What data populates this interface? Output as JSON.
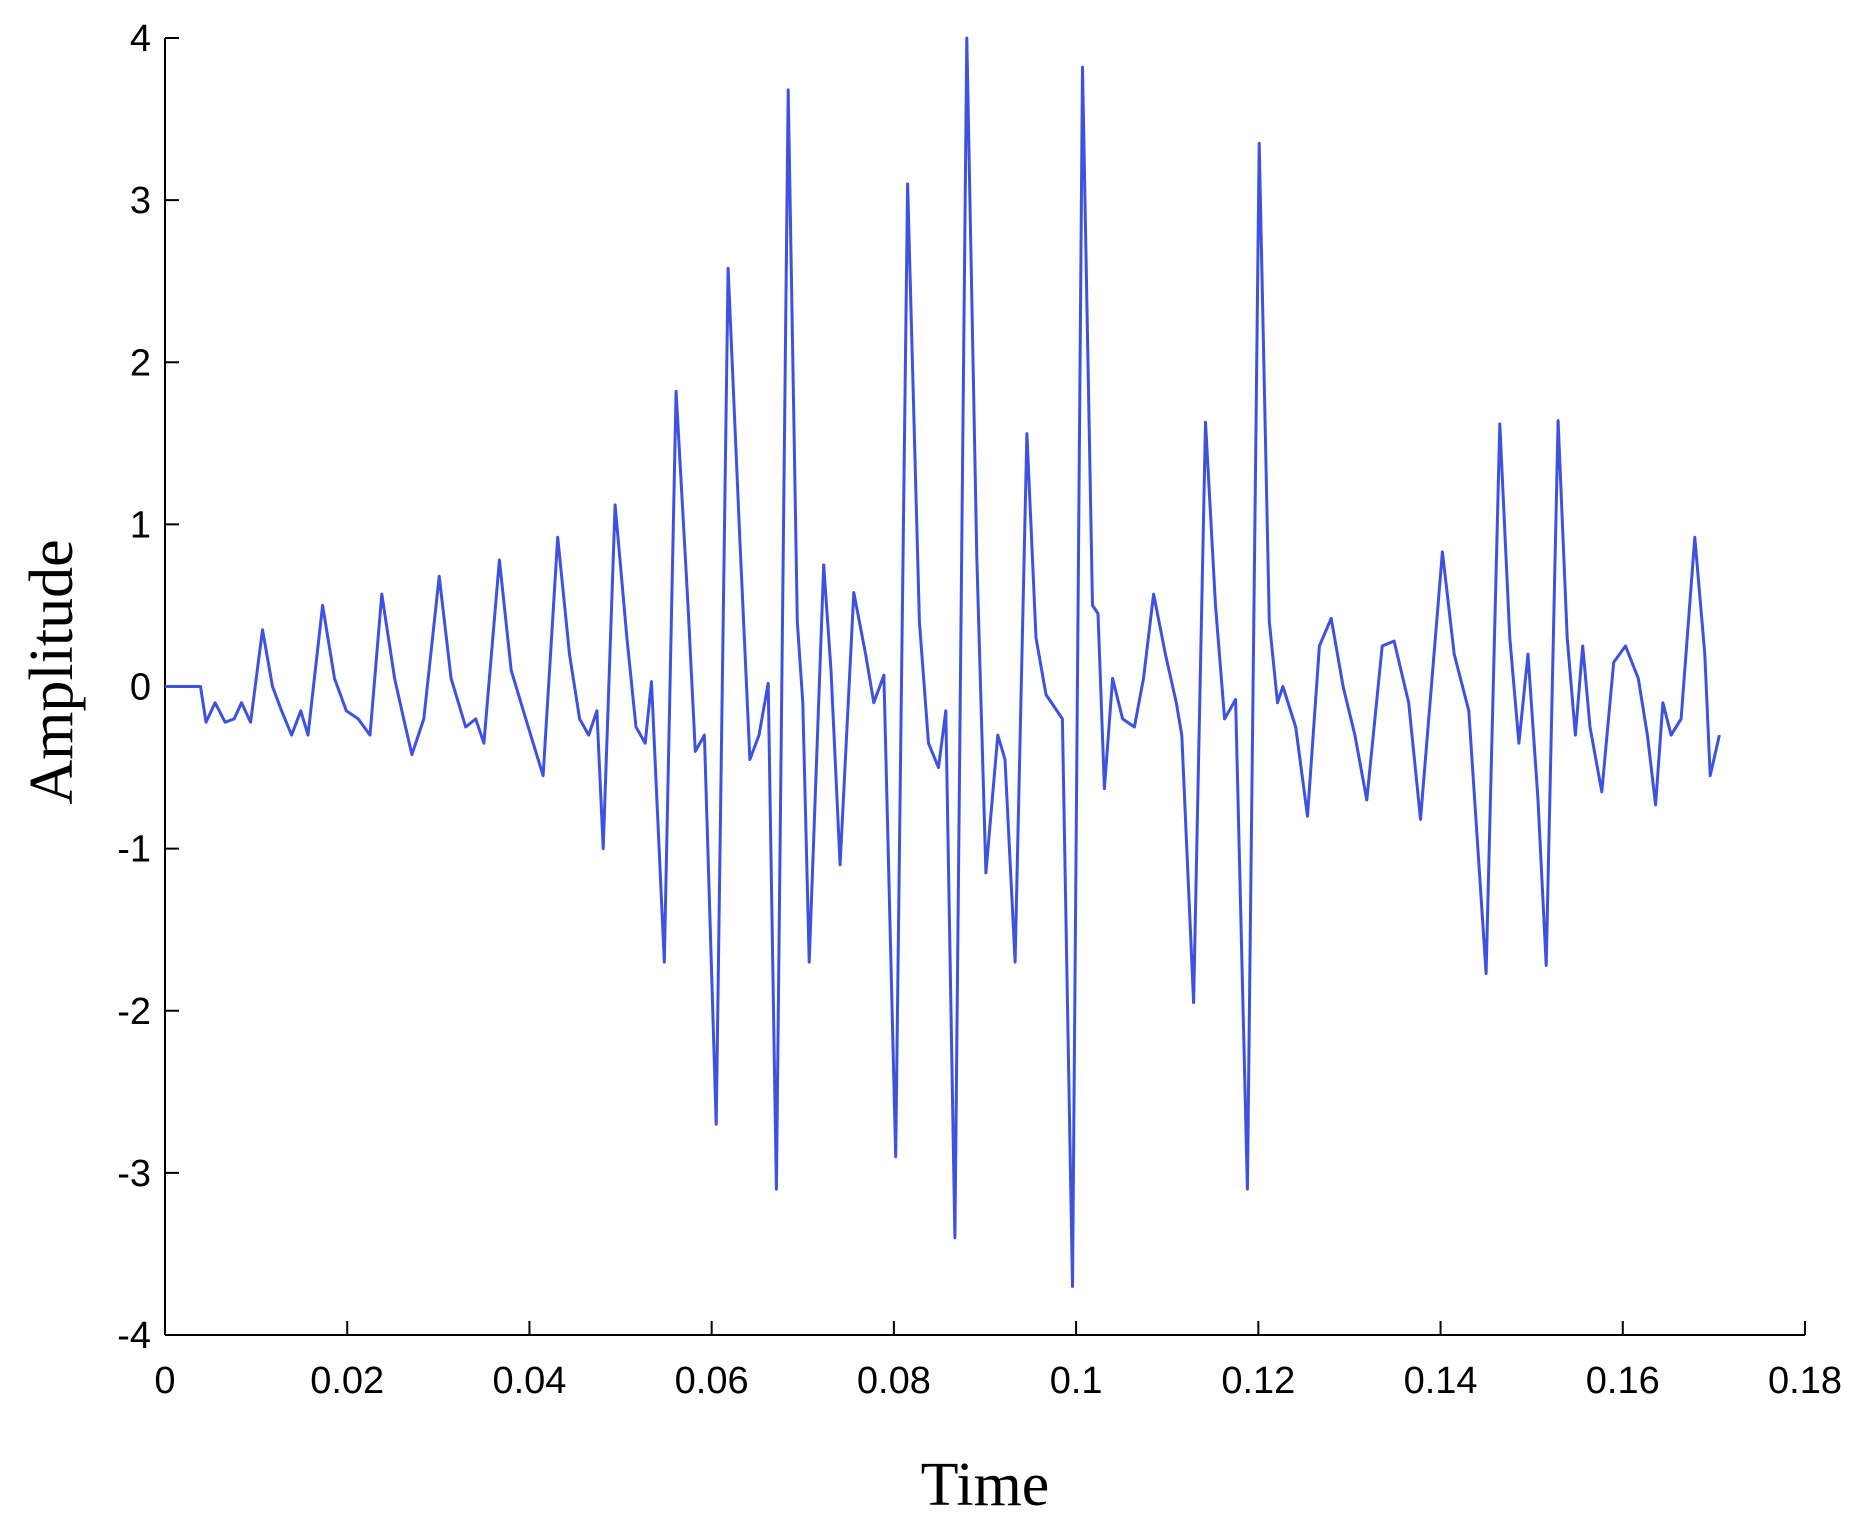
{
  "chart_data": {
    "type": "line",
    "x_label": "Time",
    "y_label": "Amplitude",
    "xlim": [
      0,
      0.18
    ],
    "xticks": [
      0,
      0.02,
      0.04,
      0.06,
      0.08,
      0.1,
      0.12,
      0.14,
      0.16,
      0.18
    ],
    "ylim": [
      -4,
      4
    ],
    "yticks": [
      -4,
      -3,
      -2,
      -1,
      0,
      1,
      2,
      3,
      4
    ],
    "x": [
      0,
      0.0039,
      0.0045,
      0.0055,
      0.0066,
      0.0076,
      0.0084,
      0.0094,
      0.0107,
      0.0118,
      0.0128,
      0.0139,
      0.0149,
      0.0157,
      0.0173,
      0.0186,
      0.0199,
      0.0212,
      0.0225,
      0.0238,
      0.0252,
      0.0262,
      0.0271,
      0.0284,
      0.0301,
      0.0314,
      0.033,
      0.0341,
      0.035,
      0.0367,
      0.038,
      0.0396,
      0.0415,
      0.0431,
      0.0444,
      0.0455,
      0.0465,
      0.0474,
      0.0481,
      0.0494,
      0.0507,
      0.0517,
      0.0527,
      0.0534,
      0.0548,
      0.0561,
      0.0574,
      0.0582,
      0.0592,
      0.0605,
      0.0618,
      0.0631,
      0.0642,
      0.0652,
      0.0662,
      0.0671,
      0.0684,
      0.0694,
      0.07,
      0.0707,
      0.0723,
      0.0731,
      0.0741,
      0.0756,
      0.0769,
      0.0778,
      0.0789,
      0.0802,
      0.0815,
      0.0828,
      0.0838,
      0.0849,
      0.0857,
      0.0867,
      0.088,
      0.0891,
      0.0901,
      0.0914,
      0.0922,
      0.0933,
      0.0946,
      0.0956,
      0.0967,
      0.0985,
      0.0996,
      0.1007,
      0.1018,
      0.1024,
      0.1031,
      0.104,
      0.1051,
      0.1064,
      0.1074,
      0.1085,
      0.1098,
      0.111,
      0.1116,
      0.1129,
      0.1142,
      0.1153,
      0.1163,
      0.1175,
      0.1188,
      0.1201,
      0.1212,
      0.1221,
      0.1227,
      0.1241,
      0.1254,
      0.1267,
      0.128,
      0.1293,
      0.1306,
      0.1319,
      0.1336,
      0.1349,
      0.1365,
      0.1378,
      0.1402,
      0.1415,
      0.1431,
      0.145,
      0.1465,
      0.1476,
      0.1486,
      0.1496,
      0.1507,
      0.1516,
      0.1529,
      0.1539,
      0.1548,
      0.1556,
      0.1564,
      0.1577,
      0.159,
      0.1603,
      0.1617,
      0.1627,
      0.1636,
      0.1644,
      0.1653,
      0.1664,
      0.1679,
      0.169,
      0.1696,
      0.1706
    ],
    "series": [
      {
        "color": "#3d52e0",
        "values": [
          0,
          0,
          -0.22,
          -0.1,
          -0.22,
          -0.2,
          -0.1,
          -0.22,
          0.35,
          0.0,
          -0.15,
          -0.3,
          -0.15,
          -0.3,
          0.5,
          0.05,
          -0.15,
          -0.2,
          -0.3,
          0.57,
          0.05,
          -0.2,
          -0.42,
          -0.2,
          0.68,
          0.05,
          -0.25,
          -0.2,
          -0.35,
          0.78,
          0.1,
          -0.2,
          -0.55,
          0.92,
          0.2,
          -0.2,
          -0.3,
          -0.15,
          -1.0,
          1.12,
          0.3,
          -0.25,
          -0.35,
          0.03,
          -1.7,
          1.82,
          0.5,
          -0.4,
          -0.3,
          -2.7,
          2.58,
          0.9,
          -0.45,
          -0.3,
          0.02,
          -3.1,
          3.68,
          0.4,
          -0.1,
          -1.7,
          0.75,
          0.1,
          -1.1,
          0.58,
          0.2,
          -0.1,
          0.07,
          -2.9,
          3.1,
          0.4,
          -0.35,
          -0.5,
          -0.15,
          -3.4,
          4.0,
          0.8,
          -1.15,
          -0.3,
          -0.45,
          -1.7,
          1.56,
          0.3,
          -0.05,
          -0.2,
          -3.7,
          3.82,
          0.5,
          0.45,
          -0.63,
          0.05,
          -0.2,
          -0.25,
          0.05,
          0.57,
          0.2,
          -0.1,
          -0.3,
          -1.95,
          1.63,
          0.5,
          -0.2,
          -0.08,
          -3.1,
          3.35,
          0.4,
          -0.1,
          0.0,
          -0.25,
          -0.8,
          0.25,
          0.42,
          0.0,
          -0.3,
          -0.7,
          0.25,
          0.28,
          -0.1,
          -0.82,
          0.83,
          0.2,
          -0.15,
          -1.77,
          1.62,
          0.3,
          -0.35,
          0.2,
          -0.7,
          -1.72,
          1.64,
          0.3,
          -0.3,
          0.25,
          -0.25,
          -0.65,
          0.15,
          0.25,
          0.05,
          -0.3,
          -0.73,
          -0.1,
          -0.3,
          -0.2,
          0.92,
          0.2,
          -0.55,
          -0.3
        ]
      }
    ]
  }
}
